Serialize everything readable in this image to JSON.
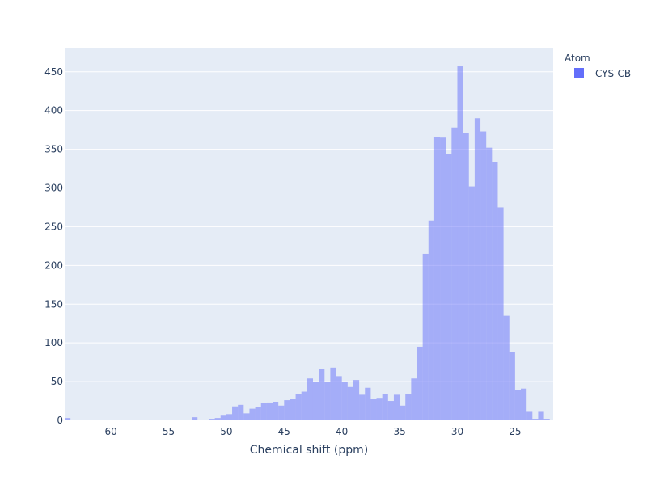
{
  "chart_data": {
    "type": "bar",
    "subtype": "histogram",
    "title": "",
    "xlabel": "Chemical shift (ppm)",
    "ylabel": "",
    "x_reversed": true,
    "xlim": [
      64.0,
      21.7
    ],
    "ylim": [
      0,
      480
    ],
    "bin_width": 0.5,
    "x_ticks": [
      60,
      55,
      50,
      45,
      40,
      35,
      30,
      25
    ],
    "y_ticks": [
      0,
      50,
      100,
      150,
      200,
      250,
      300,
      350,
      400,
      450
    ],
    "grid": true,
    "legend": {
      "title": "Atom",
      "placement": "top-right"
    },
    "series": [
      {
        "name": "CYS-CB",
        "color": "#636efa",
        "opacity": 0.5,
        "bins_x": [
          63.75,
          59.75,
          57.25,
          56.25,
          55.25,
          54.25,
          53.25,
          52.75,
          51.75,
          51.25,
          50.75,
          50.25,
          49.75,
          49.25,
          48.75,
          48.25,
          47.75,
          47.25,
          46.75,
          46.25,
          45.75,
          45.25,
          44.75,
          44.25,
          43.75,
          43.25,
          42.75,
          42.25,
          41.75,
          41.25,
          40.75,
          40.25,
          39.75,
          39.25,
          38.75,
          38.25,
          37.75,
          37.25,
          36.75,
          36.25,
          35.75,
          35.25,
          34.75,
          34.25,
          33.75,
          33.25,
          32.75,
          32.25,
          31.75,
          31.25,
          30.75,
          30.25,
          29.75,
          29.25,
          28.75,
          28.25,
          27.75,
          27.25,
          26.75,
          26.25,
          25.75,
          25.25,
          24.75,
          24.25,
          23.75,
          23.25,
          22.75,
          22.25
        ],
        "values": [
          3,
          1,
          1,
          1,
          1,
          1,
          1,
          4,
          1,
          2,
          3,
          6,
          8,
          18,
          20,
          9,
          15,
          17,
          22,
          23,
          24,
          19,
          26,
          28,
          34,
          37,
          54,
          50,
          66,
          50,
          68,
          57,
          50,
          43,
          52,
          33,
          42,
          28,
          29,
          34,
          25,
          33,
          19,
          34,
          54,
          95,
          215,
          258,
          366,
          365,
          344,
          378,
          457,
          371,
          302,
          390,
          373,
          352,
          333,
          275,
          135,
          88,
          39,
          41,
          11,
          2,
          11,
          2
        ]
      }
    ]
  }
}
